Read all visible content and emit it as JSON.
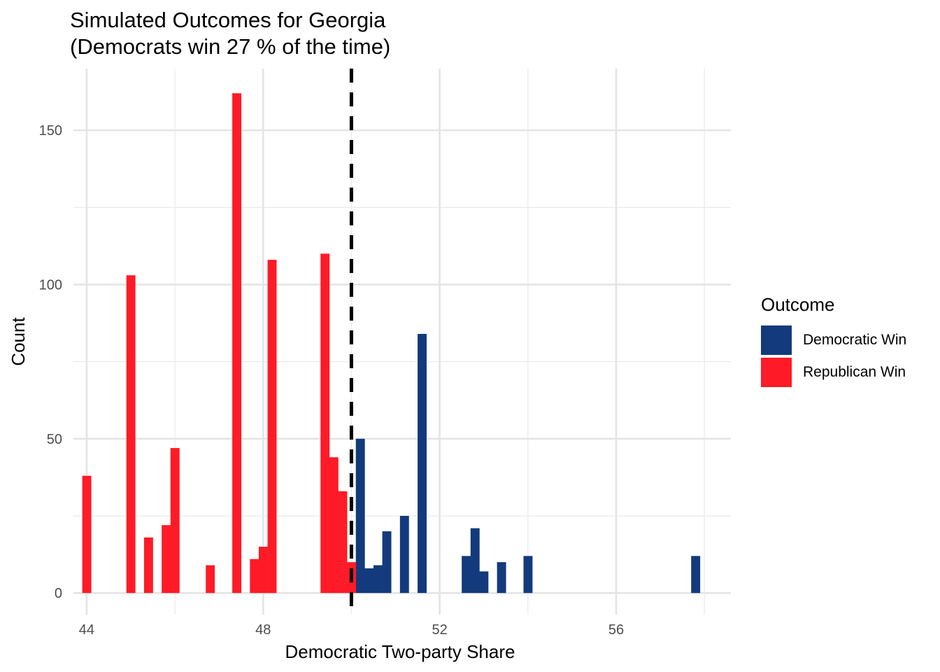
{
  "chart_data": {
    "type": "bar",
    "title": "Simulated Outcomes for Georgia",
    "subtitle": "(Democrats win 27 % of the time)",
    "xlabel": "Democratic Two-party Share",
    "ylabel": "Count",
    "xlim": [
      43.7,
      58.6
    ],
    "ylim": [
      -7,
      170
    ],
    "x_ticks": [
      44,
      48,
      52,
      56
    ],
    "y_ticks": [
      0,
      50,
      100,
      150
    ],
    "bin_width": 0.2,
    "threshold": 50,
    "grid": true,
    "legend_title": "Outcome",
    "legend_position": "right",
    "series": [
      {
        "name": "Democratic Win",
        "color": "#133A7C",
        "bins": [
          {
            "x": 50.2,
            "count": 50
          },
          {
            "x": 50.4,
            "count": 8
          },
          {
            "x": 50.6,
            "count": 9
          },
          {
            "x": 50.8,
            "count": 20
          },
          {
            "x": 51.2,
            "count": 25
          },
          {
            "x": 51.6,
            "count": 84
          },
          {
            "x": 52.6,
            "count": 12
          },
          {
            "x": 52.8,
            "count": 21
          },
          {
            "x": 53.0,
            "count": 7
          },
          {
            "x": 53.4,
            "count": 10
          },
          {
            "x": 54.0,
            "count": 12
          },
          {
            "x": 57.8,
            "count": 12
          }
        ]
      },
      {
        "name": "Republican Win",
        "color": "#FF1A27",
        "bins": [
          {
            "x": 44.0,
            "count": 38
          },
          {
            "x": 45.0,
            "count": 103
          },
          {
            "x": 45.4,
            "count": 18
          },
          {
            "x": 45.8,
            "count": 22
          },
          {
            "x": 46.0,
            "count": 47
          },
          {
            "x": 46.8,
            "count": 9
          },
          {
            "x": 47.4,
            "count": 162
          },
          {
            "x": 47.8,
            "count": 11
          },
          {
            "x": 48.0,
            "count": 15
          },
          {
            "x": 48.2,
            "count": 108
          },
          {
            "x": 49.4,
            "count": 110
          },
          {
            "x": 49.6,
            "count": 44
          },
          {
            "x": 49.8,
            "count": 33
          },
          {
            "x": 50.0,
            "count": 10
          }
        ]
      }
    ]
  }
}
